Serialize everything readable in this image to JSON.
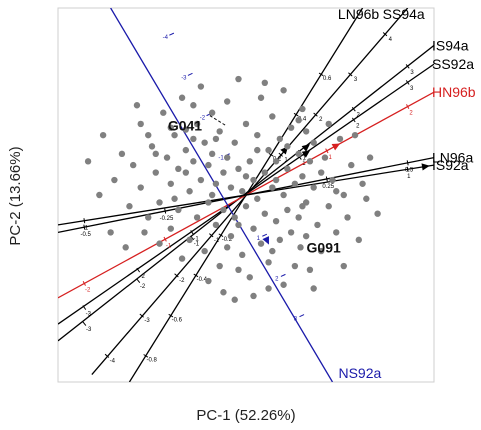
{
  "chart_data": {
    "type": "scatter",
    "subtype": "pca-biplot",
    "title": "",
    "xlabel": "PC-1  (52.26%)",
    "ylabel": "PC-2  (13.66%)",
    "xlim": [
      -5,
      5
    ],
    "ylim": [
      -5,
      5
    ],
    "grid": false,
    "colors": {
      "points": "#808080",
      "vector_default": "#000000",
      "vector_HN96b": "#d62020",
      "vector_NS92a": "#1a1aaa"
    },
    "vectors": [
      {
        "label": "LN96b",
        "tip": [
          3.1,
          5.0
        ],
        "end": [
          -3.1,
          -5.0
        ],
        "color": "#000000",
        "ticks": [
          -0.8,
          -0.6,
          -0.4,
          -0.2,
          0.2,
          0.4,
          0.6
        ]
      },
      {
        "label": "SS94a",
        "tip": [
          4.3,
          5.0
        ],
        "end": [
          -4.1,
          -4.8
        ],
        "color": "#000000",
        "ticks": [
          -4,
          -3,
          -2,
          -1,
          1,
          2,
          3,
          4
        ]
      },
      {
        "label": "IS94a",
        "tip": [
          5.0,
          4.0
        ],
        "end": [
          -5.0,
          -3.9
        ],
        "color": "#000000",
        "ticks": [
          -3,
          -2,
          -1,
          1,
          2,
          3
        ]
      },
      {
        "label": "SS92a",
        "tip": [
          5.0,
          3.5
        ],
        "end": [
          -5.0,
          -3.45
        ],
        "color": "#000000",
        "ticks": [
          -3,
          -2,
          -1,
          1,
          2,
          3
        ]
      },
      {
        "label": "HN96b",
        "tip": [
          5.0,
          2.75
        ],
        "end": [
          -5.0,
          -2.75
        ],
        "color": "#d62020",
        "ticks": [
          -2,
          -1,
          1,
          2
        ]
      },
      {
        "label": "LN96a",
        "tip": [
          5.0,
          1.0
        ],
        "end": [
          -5.0,
          -1.0
        ],
        "color": "#000000",
        "ticks": [
          -0.5,
          -0.25,
          0.25,
          0.5
        ]
      },
      {
        "label": "IS92a",
        "tip": [
          5.0,
          0.8
        ],
        "end": [
          -5.0,
          -0.8
        ],
        "color": "#000000",
        "ticks": [
          -1,
          1
        ]
      },
      {
        "label": "NS92a",
        "tip": [
          2.3,
          -5.0
        ],
        "end": [
          -3.6,
          5.0
        ],
        "color": "#1a1aaa",
        "ticks": [
          -4,
          -3,
          -2,
          -1,
          1,
          2,
          3
        ]
      }
    ],
    "labeled_genotypes": [
      {
        "name": "G041",
        "x": -1.6,
        "y": 1.75
      },
      {
        "name": "G091",
        "x": 1.45,
        "y": -1.4
      }
    ],
    "points": [
      [
        -1.6,
        1.75
      ],
      [
        1.45,
        -1.4
      ],
      [
        -4.2,
        0.9
      ],
      [
        -3.8,
        1.6
      ],
      [
        -3.5,
        0.4
      ],
      [
        -3.3,
        1.1
      ],
      [
        -3.1,
        -0.3
      ],
      [
        -3.0,
        0.8
      ],
      [
        -2.8,
        1.9
      ],
      [
        -2.8,
        0.2
      ],
      [
        -2.6,
        -0.6
      ],
      [
        -2.5,
        1.3
      ],
      [
        -2.4,
        0.6
      ],
      [
        -2.3,
        -0.2
      ],
      [
        -2.2,
        2.2
      ],
      [
        -2.1,
        1.0
      ],
      [
        -2.0,
        0.3
      ],
      [
        -2.0,
        -0.9
      ],
      [
        -1.9,
        1.6
      ],
      [
        -1.8,
        0.7
      ],
      [
        -1.8,
        -0.4
      ],
      [
        -1.7,
        2.6
      ],
      [
        -1.6,
        1.2
      ],
      [
        -1.5,
        0.1
      ],
      [
        -1.5,
        -1.2
      ],
      [
        -1.4,
        0.9
      ],
      [
        -1.3,
        1.9
      ],
      [
        -1.3,
        -0.6
      ],
      [
        -1.2,
        0.4
      ],
      [
        -1.2,
        2.9
      ],
      [
        -1.1,
        1.4
      ],
      [
        -1.1,
        -1.5
      ],
      [
        -1.0,
        0.8
      ],
      [
        -1.0,
        -0.2
      ],
      [
        -0.9,
        2.2
      ],
      [
        -0.9,
        1.1
      ],
      [
        -0.8,
        -0.8
      ],
      [
        -0.8,
        0.3
      ],
      [
        -0.7,
        1.7
      ],
      [
        -0.7,
        -1.9
      ],
      [
        -0.6,
        0.6
      ],
      [
        -0.6,
        -0.4
      ],
      [
        -0.5,
        2.5
      ],
      [
        -0.5,
        1.0
      ],
      [
        -0.4,
        -1.1
      ],
      [
        -0.4,
        0.2
      ],
      [
        -0.3,
        1.4
      ],
      [
        -0.3,
        -0.6
      ],
      [
        -0.2,
        3.1
      ],
      [
        -0.2,
        0.7
      ],
      [
        -0.1,
        -1.6
      ],
      [
        -0.1,
        0.1
      ],
      [
        0.0,
        1.9
      ],
      [
        0.0,
        -0.3
      ],
      [
        0.1,
        0.9
      ],
      [
        0.1,
        -2.2
      ],
      [
        0.2,
        0.4
      ],
      [
        0.2,
        -0.9
      ],
      [
        0.3,
        1.6
      ],
      [
        0.3,
        -0.1
      ],
      [
        0.4,
        2.6
      ],
      [
        0.4,
        -1.3
      ],
      [
        0.5,
        0.6
      ],
      [
        0.5,
        -0.5
      ],
      [
        0.6,
        1.2
      ],
      [
        0.6,
        -1.8
      ],
      [
        0.7,
        0.2
      ],
      [
        0.7,
        2.1
      ],
      [
        0.8,
        -0.7
      ],
      [
        0.8,
        0.9
      ],
      [
        0.9,
        -1.2
      ],
      [
        0.9,
        1.5
      ],
      [
        1.0,
        0.0
      ],
      [
        1.0,
        -2.4
      ],
      [
        1.1,
        0.7
      ],
      [
        1.1,
        -0.4
      ],
      [
        1.2,
        1.8
      ],
      [
        1.2,
        -1.0
      ],
      [
        1.3,
        0.3
      ],
      [
        1.3,
        -1.9
      ],
      [
        1.4,
        1.1
      ],
      [
        1.4,
        -0.6
      ],
      [
        1.5,
        0.5
      ],
      [
        1.5,
        2.3
      ],
      [
        1.6,
        -0.2
      ],
      [
        1.6,
        -1.1
      ],
      [
        1.7,
        0.9
      ],
      [
        1.7,
        -2.0
      ],
      [
        1.8,
        0.2
      ],
      [
        1.8,
        1.4
      ],
      [
        1.9,
        -0.8
      ],
      [
        2.0,
        0.6
      ],
      [
        2.0,
        -1.5
      ],
      [
        2.1,
        1.0
      ],
      [
        2.2,
        -0.3
      ],
      [
        2.3,
        0.4
      ],
      [
        2.4,
        -1.0
      ],
      [
        2.5,
        1.5
      ],
      [
        2.6,
        0.0
      ],
      [
        2.7,
        -0.6
      ],
      [
        2.8,
        0.8
      ],
      [
        3.0,
        -1.2
      ],
      [
        3.1,
        0.3
      ],
      [
        3.3,
        1.0
      ],
      [
        3.5,
        -0.5
      ],
      [
        -3.6,
        -1.0
      ],
      [
        -3.2,
        -1.4
      ],
      [
        -2.9,
        2.4
      ],
      [
        -2.6,
        1.6
      ],
      [
        -2.3,
        -1.3
      ],
      [
        -2.0,
        1.8
      ],
      [
        -1.7,
        -1.7
      ],
      [
        -1.4,
        2.4
      ],
      [
        -1.0,
        -2.3
      ],
      [
        -0.6,
        -2.6
      ],
      [
        -0.2,
        -2.0
      ],
      [
        0.2,
        -2.7
      ],
      [
        0.6,
        -2.5
      ],
      [
        1.0,
        2.8
      ],
      [
        1.4,
        2.0
      ],
      [
        1.8,
        -2.5
      ],
      [
        2.2,
        1.9
      ],
      [
        2.6,
        -1.9
      ],
      [
        2.9,
        1.6
      ],
      [
        3.2,
        -0.1
      ],
      [
        -3.9,
        0.0
      ],
      [
        -2.7,
        -1.0
      ],
      [
        -0.3,
        -2.8
      ],
      [
        0.5,
        3.0
      ],
      [
        -1.9,
        -0.1
      ],
      [
        -1.4,
        1.5
      ],
      [
        -0.9,
        0.0
      ],
      [
        -0.5,
        -1.4
      ],
      [
        0.3,
        1.2
      ],
      [
        0.7,
        -1.5
      ],
      [
        1.1,
        1.3
      ],
      [
        1.5,
        -0.3
      ],
      [
        -2.4,
        1.1
      ],
      [
        -1.6,
        0.6
      ],
      [
        -0.8,
        1.5
      ],
      [
        0.0,
        0.5
      ],
      [
        0.8,
        0.4
      ],
      [
        1.6,
        1.7
      ],
      [
        2.4,
        0.1
      ],
      [
        -0.2,
        -0.8
      ]
    ]
  }
}
